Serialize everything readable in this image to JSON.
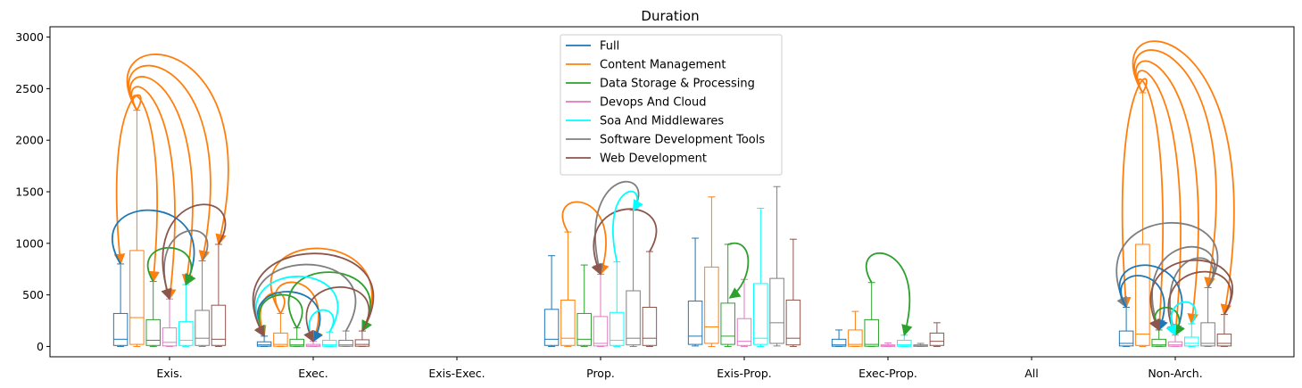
{
  "chart_data": {
    "type": "box",
    "title": "Duration",
    "xlabel": "",
    "ylabel": "",
    "ylim": [
      -100,
      3100
    ],
    "yticks": [
      0,
      500,
      1000,
      1500,
      2000,
      2500,
      3000
    ],
    "categories": [
      "Exis.",
      "Exec.",
      "Exis-Exec.",
      "Prop.",
      "Exis-Prop.",
      "Exec-Prop.",
      "All",
      "Non-Arch."
    ],
    "legend": {
      "position": "top-center"
    },
    "series": [
      {
        "name": "Full",
        "color": "#1f77b4",
        "boxes": [
          {
            "cat": 0,
            "whislo": 0,
            "q1": 10,
            "med": 70,
            "q3": 320,
            "whishi": 800
          },
          {
            "cat": 1,
            "whislo": 0,
            "q1": 2,
            "med": 15,
            "q3": 45,
            "whishi": 100
          },
          {
            "cat": 3,
            "whislo": 0,
            "q1": 10,
            "med": 70,
            "q3": 360,
            "whishi": 880
          },
          {
            "cat": 4,
            "whislo": 5,
            "q1": 20,
            "med": 100,
            "q3": 440,
            "whishi": 1050
          },
          {
            "cat": 5,
            "whislo": 0,
            "q1": 2,
            "med": 15,
            "q3": 70,
            "whishi": 160
          },
          {
            "cat": 7,
            "whislo": 0,
            "q1": 5,
            "med": 30,
            "q3": 150,
            "whishi": 380
          }
        ]
      },
      {
        "name": "Content Management",
        "color": "#ff7f0e",
        "boxes": [
          {
            "cat": 0,
            "whislo": 0,
            "q1": 20,
            "med": 280,
            "q3": 930,
            "whishi": 2290
          },
          {
            "cat": 1,
            "whislo": 0,
            "q1": 2,
            "med": 20,
            "q3": 130,
            "whishi": 320
          },
          {
            "cat": 3,
            "whislo": 0,
            "q1": 10,
            "med": 80,
            "q3": 450,
            "whishi": 1110
          },
          {
            "cat": 4,
            "whislo": 0,
            "q1": 30,
            "med": 190,
            "q3": 770,
            "whishi": 1450
          },
          {
            "cat": 5,
            "whislo": 0,
            "q1": 2,
            "med": 20,
            "q3": 160,
            "whishi": 340
          },
          {
            "cat": 7,
            "whislo": 0,
            "q1": 10,
            "med": 120,
            "q3": 990,
            "whishi": 2460
          }
        ]
      },
      {
        "name": "Data Storage & Processing",
        "color": "#2ca02c",
        "boxes": [
          {
            "cat": 0,
            "whislo": 0,
            "q1": 10,
            "med": 60,
            "q3": 260,
            "whishi": 630
          },
          {
            "cat": 1,
            "whislo": 0,
            "q1": 2,
            "med": 15,
            "q3": 70,
            "whishi": 180
          },
          {
            "cat": 3,
            "whislo": 0,
            "q1": 10,
            "med": 70,
            "q3": 320,
            "whishi": 790
          },
          {
            "cat": 4,
            "whislo": 0,
            "q1": 20,
            "med": 100,
            "q3": 420,
            "whishi": 990
          },
          {
            "cat": 5,
            "whislo": 0,
            "q1": 2,
            "med": 20,
            "q3": 260,
            "whishi": 620
          },
          {
            "cat": 7,
            "whislo": 0,
            "q1": 2,
            "med": 15,
            "q3": 70,
            "whishi": 160
          }
        ]
      },
      {
        "name": "Devops And Cloud",
        "color": "#e377c2",
        "boxes": [
          {
            "cat": 0,
            "whislo": 0,
            "q1": 5,
            "med": 40,
            "q3": 180,
            "whishi": 460
          },
          {
            "cat": 1,
            "whislo": 0,
            "q1": 1,
            "med": 5,
            "q3": 20,
            "whishi": 50
          },
          {
            "cat": 3,
            "whislo": 0,
            "q1": 5,
            "med": 30,
            "q3": 290,
            "whishi": 700
          },
          {
            "cat": 4,
            "whislo": 0,
            "q1": 10,
            "med": 50,
            "q3": 270,
            "whishi": 650
          },
          {
            "cat": 5,
            "whislo": 0,
            "q1": 1,
            "med": 5,
            "q3": 15,
            "whishi": 35
          },
          {
            "cat": 7,
            "whislo": 0,
            "q1": 2,
            "med": 15,
            "q3": 45,
            "whishi": 110
          }
        ]
      },
      {
        "name": "Soa And Middlewares",
        "color": "#00ffff",
        "boxes": [
          {
            "cat": 0,
            "whislo": 0,
            "q1": 10,
            "med": 60,
            "q3": 240,
            "whishi": 600
          },
          {
            "cat": 1,
            "whislo": 0,
            "q1": 2,
            "med": 15,
            "q3": 60,
            "whishi": 140
          },
          {
            "cat": 3,
            "whislo": 0,
            "q1": 10,
            "med": 60,
            "q3": 330,
            "whishi": 820
          },
          {
            "cat": 4,
            "whislo": 0,
            "q1": 20,
            "med": 80,
            "q3": 610,
            "whishi": 1340
          },
          {
            "cat": 5,
            "whislo": 0,
            "q1": 2,
            "med": 15,
            "q3": 60,
            "whishi": 110
          },
          {
            "cat": 7,
            "whislo": 0,
            "q1": 5,
            "med": 30,
            "q3": 90,
            "whishi": 220
          }
        ]
      },
      {
        "name": "Software Development Tools",
        "color": "#7f7f7f",
        "boxes": [
          {
            "cat": 0,
            "whislo": 0,
            "q1": 10,
            "med": 80,
            "q3": 350,
            "whishi": 830
          },
          {
            "cat": 1,
            "whislo": 0,
            "q1": 2,
            "med": 15,
            "q3": 60,
            "whishi": 150
          },
          {
            "cat": 3,
            "whislo": 0,
            "q1": 15,
            "med": 80,
            "q3": 540,
            "whishi": 1320
          },
          {
            "cat": 4,
            "whislo": 5,
            "q1": 30,
            "med": 230,
            "q3": 660,
            "whishi": 1550
          },
          {
            "cat": 5,
            "whislo": 0,
            "q1": 1,
            "med": 5,
            "q3": 15,
            "whishi": 30
          },
          {
            "cat": 7,
            "whislo": 0,
            "q1": 5,
            "med": 30,
            "q3": 230,
            "whishi": 570
          }
        ]
      },
      {
        "name": "Web Development",
        "color": "#8c564b",
        "boxes": [
          {
            "cat": 0,
            "whislo": 0,
            "q1": 10,
            "med": 70,
            "q3": 400,
            "whishi": 990
          },
          {
            "cat": 1,
            "whislo": 0,
            "q1": 2,
            "med": 20,
            "q3": 65,
            "whishi": 150
          },
          {
            "cat": 3,
            "whislo": 0,
            "q1": 10,
            "med": 80,
            "q3": 380,
            "whishi": 920
          },
          {
            "cat": 4,
            "whislo": 0,
            "q1": 15,
            "med": 80,
            "q3": 450,
            "whishi": 1040
          },
          {
            "cat": 5,
            "whislo": 0,
            "q1": 10,
            "med": 50,
            "q3": 130,
            "whishi": 230
          },
          {
            "cat": 7,
            "whislo": 0,
            "q1": 5,
            "med": 30,
            "q3": 120,
            "whishi": 310
          }
        ]
      }
    ],
    "arrows": [
      {
        "cat": 0,
        "from": 1,
        "to": 0,
        "color": "#ff7f0e"
      },
      {
        "cat": 0,
        "from": 1,
        "to": 2,
        "color": "#ff7f0e"
      },
      {
        "cat": 0,
        "from": 1,
        "to": 3,
        "color": "#ff7f0e"
      },
      {
        "cat": 0,
        "from": 1,
        "to": 4,
        "color": "#ff7f0e"
      },
      {
        "cat": 0,
        "from": 1,
        "to": 5,
        "color": "#ff7f0e"
      },
      {
        "cat": 0,
        "from": 1,
        "to": 6,
        "color": "#ff7f0e"
      },
      {
        "cat": 0,
        "from": 0,
        "to": 4,
        "color": "#1f77b4"
      },
      {
        "cat": 0,
        "from": 2,
        "to": 4,
        "color": "#2ca02c"
      },
      {
        "cat": 0,
        "from": 5,
        "to": 3,
        "color": "#7f7f7f"
      },
      {
        "cat": 0,
        "from": 6,
        "to": 3,
        "color": "#8c564b"
      },
      {
        "cat": 1,
        "from": 1,
        "to": 0,
        "color": "#ff7f0e"
      },
      {
        "cat": 1,
        "from": 1,
        "to": 3,
        "color": "#ff7f0e"
      },
      {
        "cat": 1,
        "from": 1,
        "to": 6,
        "color": "#ff7f0e"
      },
      {
        "cat": 1,
        "from": 0,
        "to": 3,
        "color": "#1f77b4"
      },
      {
        "cat": 1,
        "from": 2,
        "to": 0,
        "color": "#2ca02c"
      },
      {
        "cat": 1,
        "from": 2,
        "to": 6,
        "color": "#2ca02c"
      },
      {
        "cat": 1,
        "from": 4,
        "to": 0,
        "color": "#00ffff"
      },
      {
        "cat": 1,
        "from": 4,
        "to": 3,
        "color": "#00ffff"
      },
      {
        "cat": 1,
        "from": 5,
        "to": 0,
        "color": "#7f7f7f"
      },
      {
        "cat": 1,
        "from": 6,
        "to": 0,
        "color": "#8c564b"
      },
      {
        "cat": 1,
        "from": 6,
        "to": 3,
        "color": "#8c564b"
      },
      {
        "cat": 3,
        "from": 1,
        "to": 3,
        "color": "#ff7f0e"
      },
      {
        "cat": 3,
        "from": 5,
        "to": 3,
        "color": "#7f7f7f"
      },
      {
        "cat": 3,
        "from": 6,
        "to": 3,
        "color": "#8c564b"
      },
      {
        "cat": 3,
        "from": 4,
        "to": 5,
        "color": "#00ffff"
      },
      {
        "cat": 4,
        "from": 2,
        "to": 2,
        "color": "#2ca02c"
      },
      {
        "cat": 5,
        "from": 2,
        "to": 4,
        "color": "#2ca02c"
      },
      {
        "cat": 7,
        "from": 1,
        "to": 0,
        "color": "#ff7f0e"
      },
      {
        "cat": 7,
        "from": 1,
        "to": 2,
        "color": "#ff7f0e"
      },
      {
        "cat": 7,
        "from": 1,
        "to": 3,
        "color": "#ff7f0e"
      },
      {
        "cat": 7,
        "from": 1,
        "to": 4,
        "color": "#ff7f0e"
      },
      {
        "cat": 7,
        "from": 1,
        "to": 5,
        "color": "#ff7f0e"
      },
      {
        "cat": 7,
        "from": 1,
        "to": 6,
        "color": "#ff7f0e"
      },
      {
        "cat": 7,
        "from": 5,
        "to": 0,
        "color": "#7f7f7f"
      },
      {
        "cat": 7,
        "from": 5,
        "to": 2,
        "color": "#7f7f7f"
      },
      {
        "cat": 7,
        "from": 5,
        "to": 3,
        "color": "#7f7f7f"
      },
      {
        "cat": 7,
        "from": 0,
        "to": 3,
        "color": "#1f77b4"
      },
      {
        "cat": 7,
        "from": 0,
        "to": 2,
        "color": "#1f77b4"
      },
      {
        "cat": 7,
        "from": 2,
        "to": 3,
        "color": "#2ca02c"
      },
      {
        "cat": 7,
        "from": 6,
        "to": 2,
        "color": "#8c564b"
      },
      {
        "cat": 7,
        "from": 6,
        "to": 3,
        "color": "#8c564b"
      },
      {
        "cat": 7,
        "from": 4,
        "to": 3,
        "color": "#00ffff"
      }
    ]
  }
}
